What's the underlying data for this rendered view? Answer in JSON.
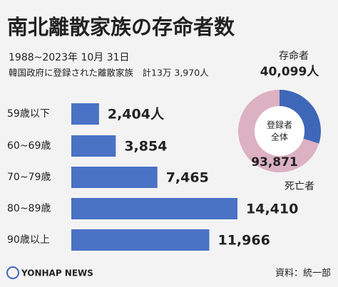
{
  "title": "南北離散家族の存命者数",
  "subtitle": "1988~2023年 10月 31日",
  "note": "韓国政府に登録された離散家族　計13万 3,970人",
  "source": "資料：統一部",
  "logo": "YONHAP NEWS",
  "chart_data": [
    {
      "type": "bar",
      "orientation": "horizontal",
      "categories": [
        "59歳以下",
        "60~69歳",
        "70~79歳",
        "80~89歳",
        "90歳以上"
      ],
      "values": [
        2404,
        3854,
        7465,
        14410,
        11966
      ],
      "value_labels": [
        "2,404人",
        "3,854",
        "7,465",
        "14,410",
        "11,966"
      ],
      "color": "#4a72c5"
    },
    {
      "type": "pie",
      "donut": true,
      "categories": [
        "存命者",
        "死亡者"
      ],
      "values": [
        40099,
        93871
      ],
      "value_labels": [
        "40,099人",
        "93,871"
      ],
      "colors": [
        "#3f67b8",
        "#dcb1c2"
      ],
      "center_label": [
        "登録者",
        "全体"
      ]
    }
  ]
}
